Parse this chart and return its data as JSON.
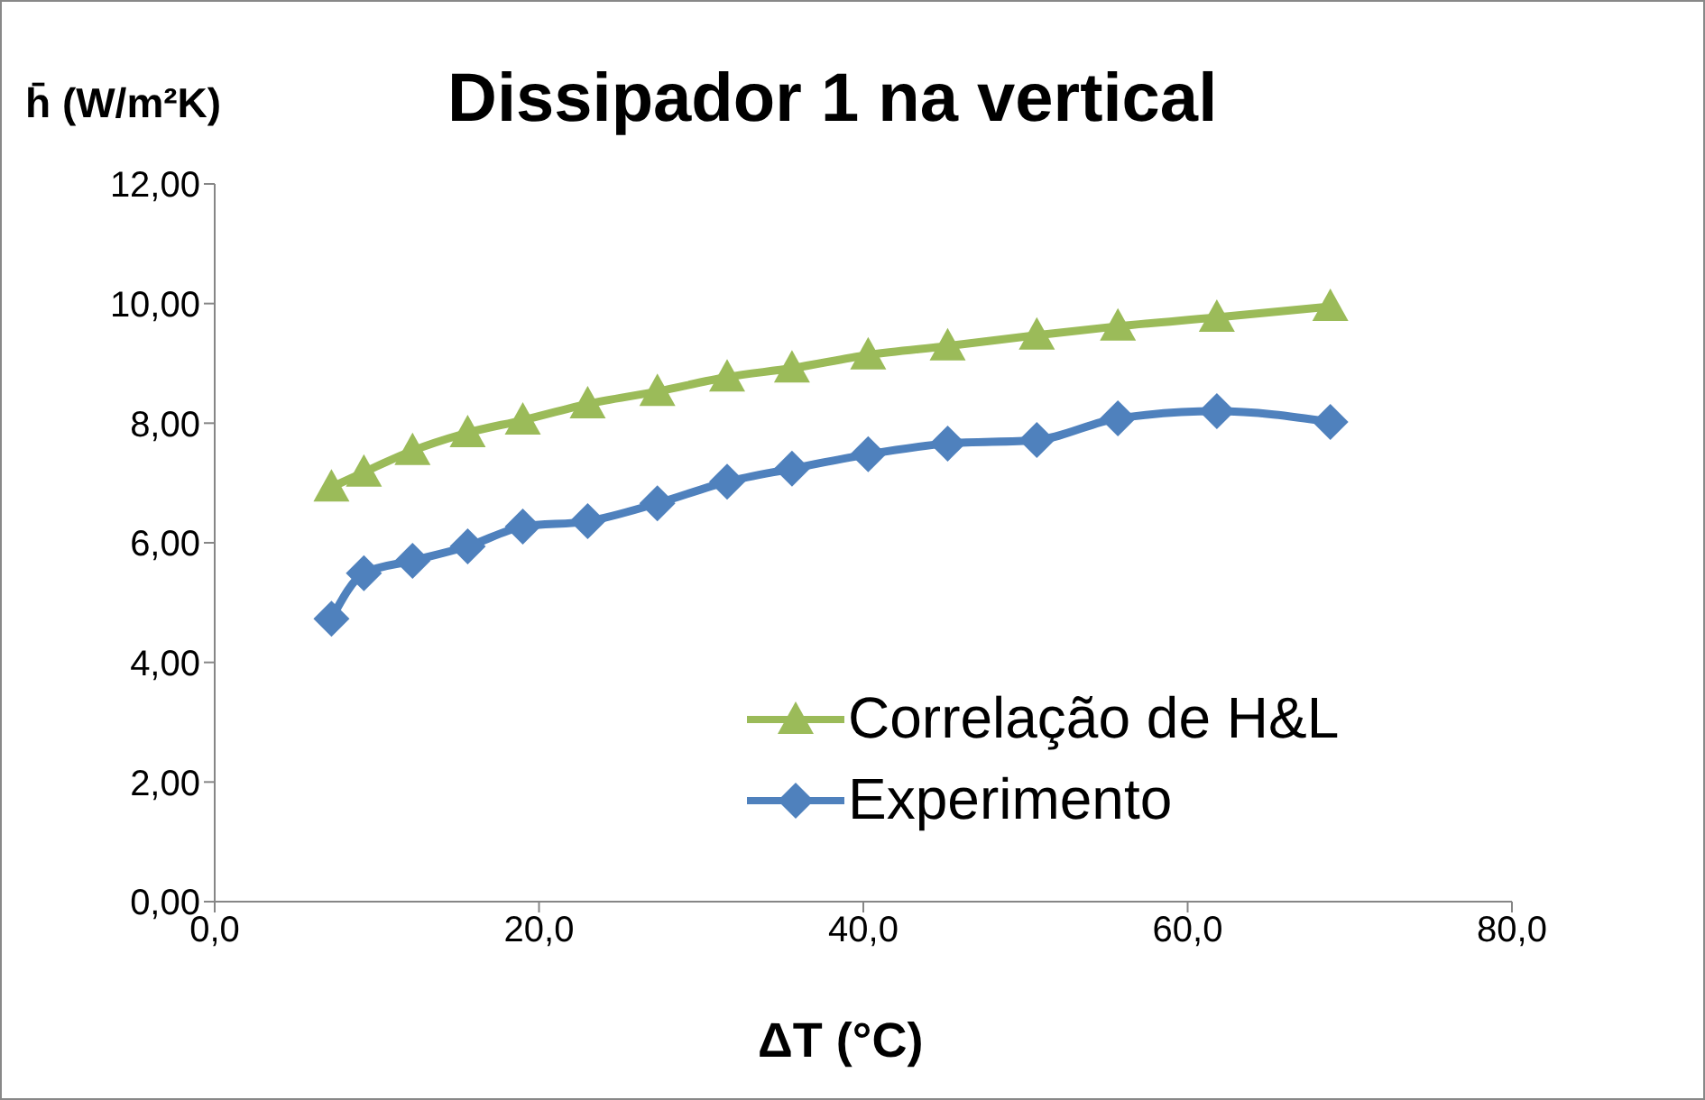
{
  "chart_data": {
    "type": "line",
    "title": "Dissipador 1 na vertical",
    "xlabel": "ΔT (°C)",
    "ylabel": "h̄ (W/m²K)",
    "xlim": [
      0,
      80
    ],
    "xticks": [
      {
        "value": 0,
        "label": "0,0"
      },
      {
        "value": 20,
        "label": "20,0"
      },
      {
        "value": 40,
        "label": "40,0"
      },
      {
        "value": 60,
        "label": "60,0"
      },
      {
        "value": 80,
        "label": "80,0"
      }
    ],
    "ylim": [
      0,
      12
    ],
    "yticks": [
      {
        "value": 0,
        "label": "0,00"
      },
      {
        "value": 2,
        "label": "2,00"
      },
      {
        "value": 4,
        "label": "4,00"
      },
      {
        "value": 6,
        "label": "6,00"
      },
      {
        "value": 8,
        "label": "8,00"
      },
      {
        "value": 10,
        "label": "10,00"
      },
      {
        "value": 12,
        "label": "12,00"
      }
    ],
    "x": [
      7.2,
      9.2,
      12.2,
      15.6,
      19.0,
      23.0,
      27.3,
      31.6,
      35.6,
      40.3,
      45.2,
      50.7,
      55.7,
      61.8,
      68.8
    ],
    "series": [
      {
        "name": "Correlação de H&L",
        "color": "#9bbb59",
        "marker": "triangle",
        "values": [
          6.93,
          7.18,
          7.54,
          7.84,
          8.05,
          8.32,
          8.53,
          8.77,
          8.92,
          9.14,
          9.29,
          9.47,
          9.62,
          9.77,
          9.95
        ]
      },
      {
        "name": "Experimento",
        "color": "#4f81bd",
        "marker": "diamond",
        "values": [
          4.73,
          5.49,
          5.7,
          5.94,
          6.27,
          6.36,
          6.66,
          7.02,
          7.24,
          7.48,
          7.66,
          7.72,
          8.08,
          8.2,
          8.02
        ]
      }
    ],
    "grid": false,
    "legend": "bottom right"
  }
}
